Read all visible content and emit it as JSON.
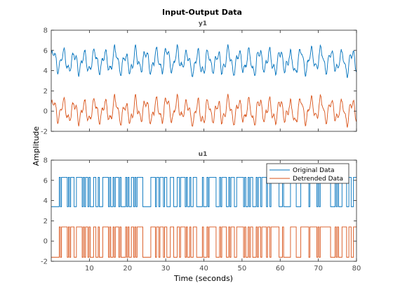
{
  "figure": {
    "title": "Input-Output Data",
    "xlabel": "Time (seconds)",
    "ylabel": "Amplitude"
  },
  "colors": {
    "original": "#0072BD",
    "detrended": "#D95319",
    "axis": "#262626",
    "ticklabel": "#4d4d4d"
  },
  "legend": {
    "placement": "top-right of lower axes",
    "items": [
      {
        "label": "Original Data",
        "color": "#0072BD"
      },
      {
        "label": "Detrended Data",
        "color": "#D95319"
      }
    ]
  },
  "chart_data": [
    {
      "type": "line",
      "title": "y1",
      "xlim": [
        0,
        80
      ],
      "ylim": [
        -2,
        8
      ],
      "xticks": [
        10,
        20,
        30,
        40,
        50,
        60,
        70,
        80
      ],
      "xtick_labels_visible": false,
      "yticks": [
        -2,
        0,
        2,
        4,
        6,
        8
      ],
      "grid": false,
      "sample_time": 0.1,
      "series": [
        {
          "name": "Original Data",
          "color": "#0072BD",
          "mean": 4.9,
          "approx_range": [
            3.2,
            6.6
          ]
        },
        {
          "name": "Detrended Data",
          "color": "#D95319",
          "mean": 0.0,
          "approx_range": [
            -1.7,
            1.7
          ]
        }
      ],
      "note_values": "Continuous oscillating output signal; detrended series equals original minus its mean (≈4.9)."
    },
    {
      "type": "line",
      "title": "u1",
      "xlim": [
        0,
        80
      ],
      "ylim": [
        -2,
        8
      ],
      "xticks": [
        10,
        20,
        30,
        40,
        50,
        60,
        70,
        80
      ],
      "xtick_labels_visible": true,
      "yticks": [
        -2,
        0,
        2,
        4,
        6,
        8
      ],
      "grid": false,
      "sample_time": 0.1,
      "series": [
        {
          "name": "Original Data",
          "color": "#0072BD",
          "levels": [
            3.4,
            6.3
          ]
        },
        {
          "name": "Detrended Data",
          "color": "#D95319",
          "levels": [
            -1.6,
            1.4
          ]
        }
      ],
      "note_values": "Binary (two-level) pseudo-random input signal; detrended series equals original minus its mean."
    }
  ]
}
